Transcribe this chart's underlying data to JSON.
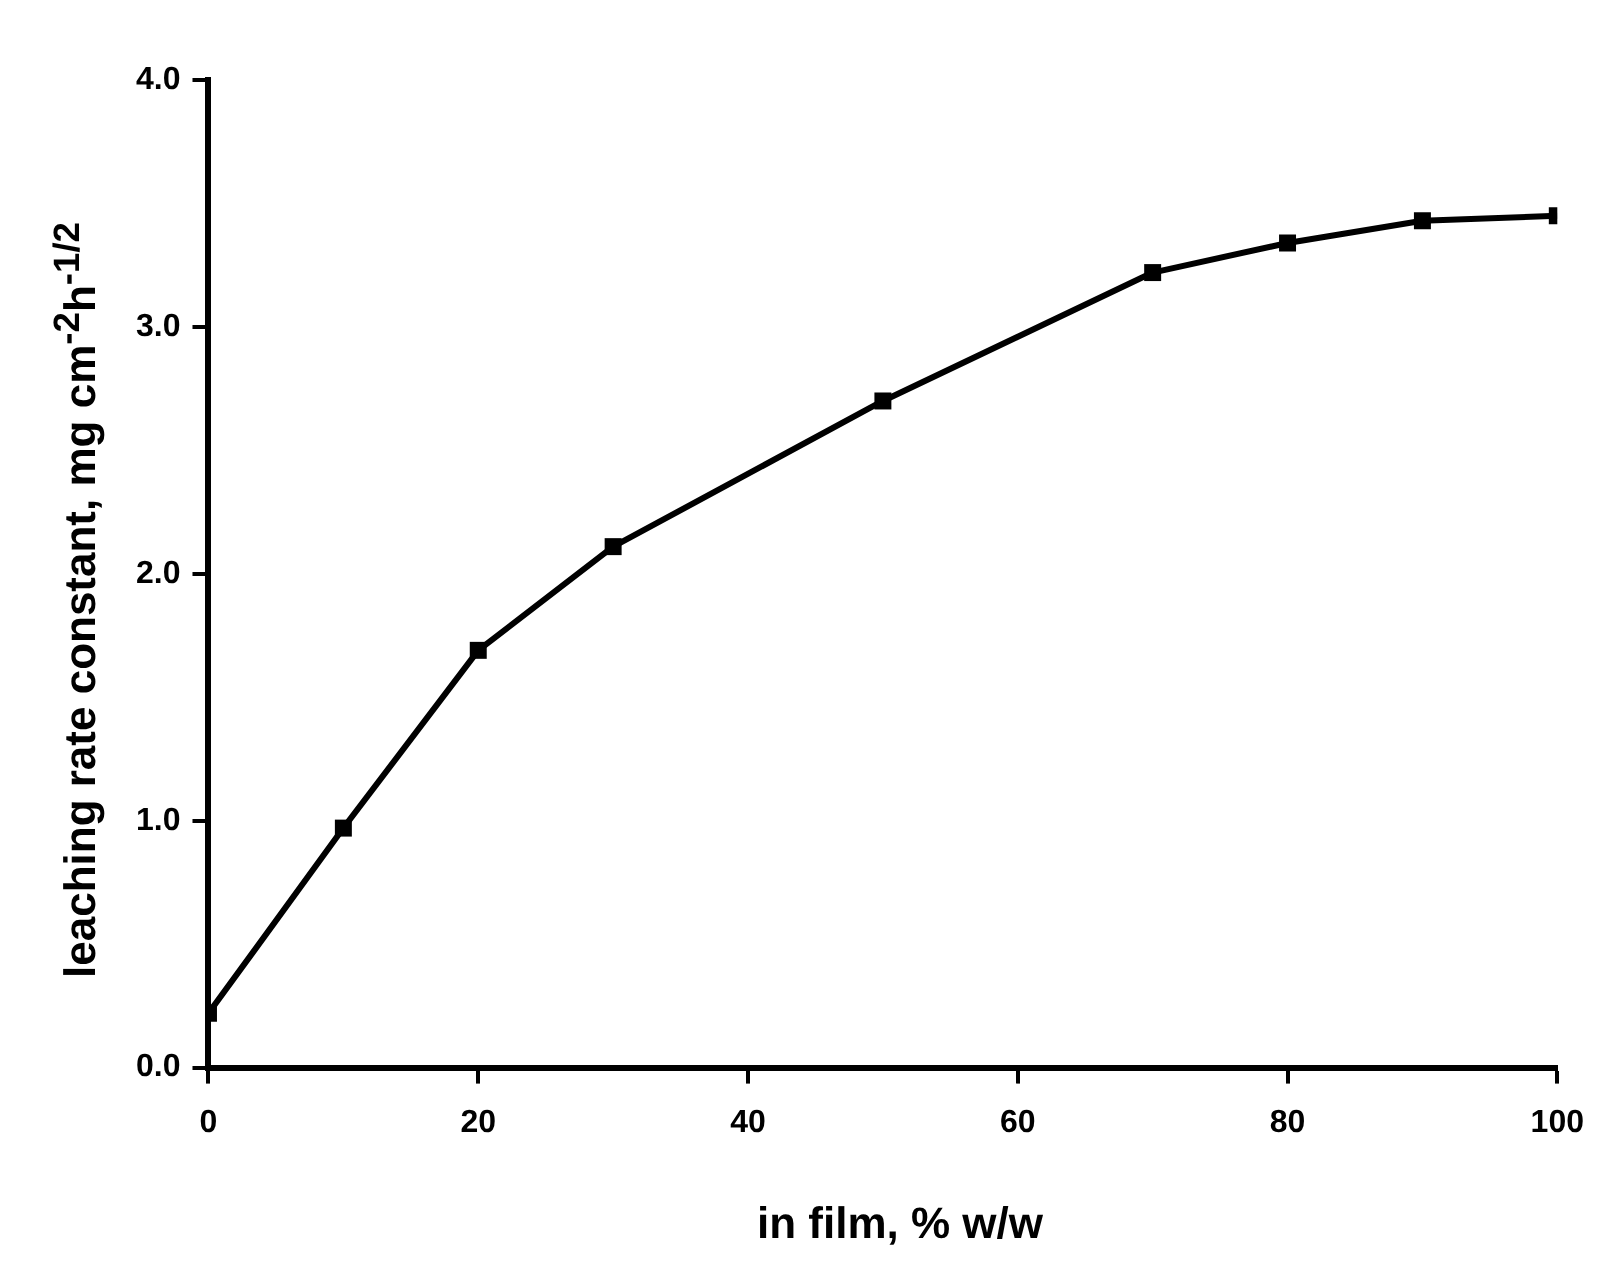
{
  "chart_data": {
    "type": "line",
    "xlabel": "in film, % w/w",
    "ylabel": "leaching rate constant, mg cm$^{-2}$h$^{-1/2}$",
    "x": [
      0,
      10,
      20,
      30,
      50,
      70,
      80,
      90,
      100
    ],
    "series": [
      {
        "color": "#000000",
        "values": [
          0.22,
          0.97,
          1.69,
          2.11,
          2.7,
          3.22,
          3.34,
          3.43,
          3.45
        ]
      }
    ],
    "xlim": [
      0,
      100
    ],
    "xticks": [
      0,
      20,
      40,
      60,
      80,
      100
    ],
    "ylim": [
      0,
      4
    ],
    "yticks": [
      {
        "value": 0,
        "label": "0.0"
      },
      {
        "value": 1,
        "label": "1.0"
      },
      {
        "value": 2,
        "label": "2.0"
      },
      {
        "value": 3,
        "label": "3.0"
      },
      {
        "value": 4,
        "label": "4.0"
      }
    ],
    "grid": false,
    "legend": false,
    "marker": "square",
    "line_style": "solid"
  }
}
